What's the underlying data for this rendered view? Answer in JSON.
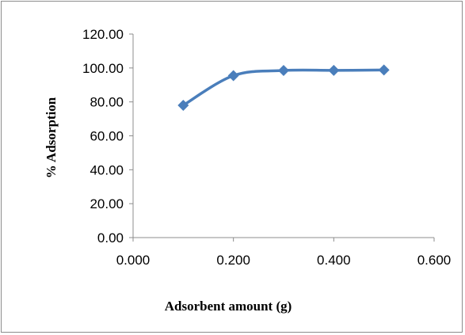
{
  "chart_data": {
    "type": "line",
    "xlabel": "Adsorbent amount (g)",
    "ylabel": "% Adsorption",
    "xlim": [
      0,
      0.6
    ],
    "ylim": [
      0,
      120
    ],
    "x_ticks": [
      "0.000",
      "0.200",
      "0.400",
      "0.600"
    ],
    "y_ticks": [
      "0.00",
      "20.00",
      "40.00",
      "60.00",
      "80.00",
      "100.00",
      "120.00"
    ],
    "grid": false,
    "legend": "none",
    "smoothed": true,
    "marker": "diamond",
    "series_color": "#4a7ebb",
    "series": [
      {
        "x": [
          0.1,
          0.2,
          0.3,
          0.4,
          0.5
        ],
        "values": [
          78.0,
          95.5,
          98.5,
          98.6,
          98.8
        ]
      }
    ]
  }
}
